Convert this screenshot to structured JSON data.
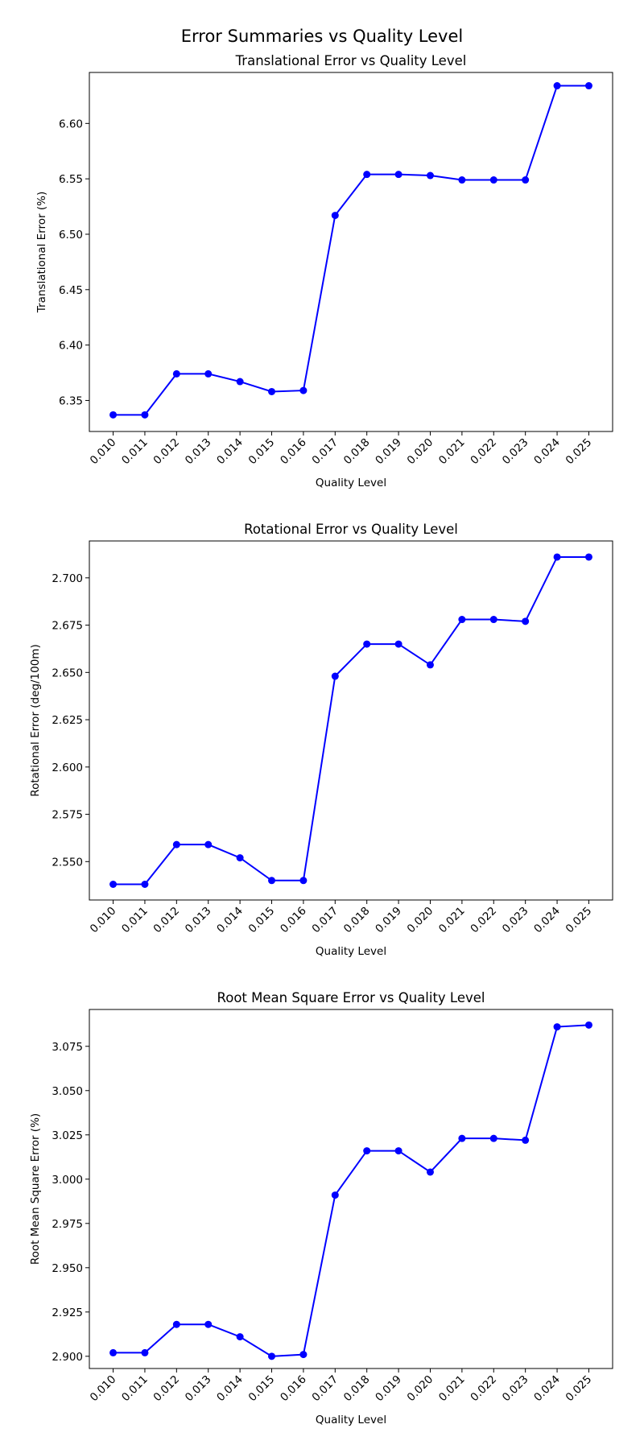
{
  "figure": {
    "suptitle": "Error Summaries vs Quality Level"
  },
  "colors": {
    "series": "#0000ff",
    "axes": "#000000",
    "background": "#ffffff"
  },
  "chart_data": [
    {
      "type": "line",
      "title": "Translational Error vs Quality Level",
      "xlabel": "Quality Level",
      "ylabel": "Translational Error (%)",
      "grid": false,
      "categories": [
        "0.010",
        "0.011",
        "0.012",
        "0.013",
        "0.014",
        "0.015",
        "0.016",
        "0.017",
        "0.018",
        "0.019",
        "0.020",
        "0.021",
        "0.022",
        "0.023",
        "0.024",
        "0.025"
      ],
      "ylim": [
        6.322,
        6.646
      ],
      "yticks": [
        "6.35",
        "6.40",
        "6.45",
        "6.50",
        "6.55",
        "6.60"
      ],
      "series": [
        {
          "values": [
            6.337,
            6.337,
            6.374,
            6.374,
            6.367,
            6.358,
            6.359,
            6.517,
            6.554,
            6.554,
            6.553,
            6.549,
            6.549,
            6.549,
            6.634,
            6.634
          ]
        }
      ]
    },
    {
      "type": "line",
      "title": "Rotational Error vs Quality Level",
      "xlabel": "Quality Level",
      "ylabel": "Rotational Error (deg/100m)",
      "grid": false,
      "categories": [
        "0.010",
        "0.011",
        "0.012",
        "0.013",
        "0.014",
        "0.015",
        "0.016",
        "0.017",
        "0.018",
        "0.019",
        "0.020",
        "0.021",
        "0.022",
        "0.023",
        "0.024",
        "0.025"
      ],
      "ylim": [
        2.5297,
        2.7195
      ],
      "yticks": [
        "2.550",
        "2.575",
        "2.600",
        "2.625",
        "2.650",
        "2.675",
        "2.700"
      ],
      "series": [
        {
          "values": [
            2.538,
            2.538,
            2.559,
            2.559,
            2.552,
            2.54,
            2.54,
            2.648,
            2.665,
            2.665,
            2.654,
            2.678,
            2.678,
            2.677,
            2.711,
            2.711
          ]
        }
      ]
    },
    {
      "type": "line",
      "title": "Root Mean Square Error vs Quality Level",
      "xlabel": "Quality Level",
      "ylabel": "Root Mean Square Error (%)",
      "grid": false,
      "categories": [
        "0.010",
        "0.011",
        "0.012",
        "0.013",
        "0.014",
        "0.015",
        "0.016",
        "0.017",
        "0.018",
        "0.019",
        "0.020",
        "0.021",
        "0.022",
        "0.023",
        "0.024",
        "0.025"
      ],
      "ylim": [
        2.8931,
        3.0958
      ],
      "yticks": [
        "2.900",
        "2.925",
        "2.950",
        "2.975",
        "3.000",
        "3.025",
        "3.050",
        "3.075"
      ],
      "series": [
        {
          "values": [
            2.902,
            2.902,
            2.918,
            2.918,
            2.911,
            2.9,
            2.901,
            2.991,
            3.016,
            3.016,
            3.004,
            3.023,
            3.023,
            3.022,
            3.086,
            3.087
          ]
        }
      ]
    }
  ]
}
